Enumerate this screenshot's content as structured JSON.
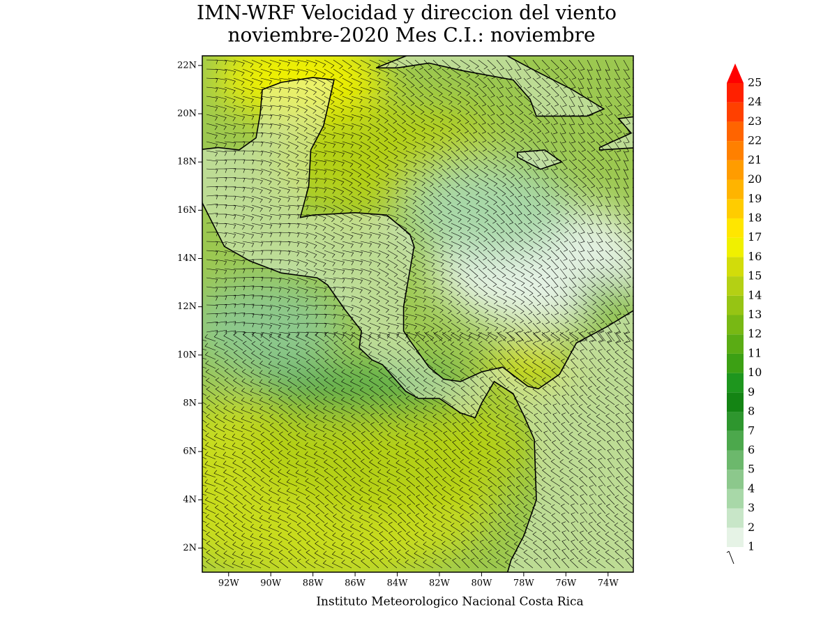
{
  "map": {
    "title": [
      "IMN-WRF Velocidad y direccion del viento",
      "noviembre-2020 Mes C.I.: noviembre"
    ],
    "footer": "Instituto Meteorologico Nacional Costa Rica",
    "xlim": [
      -93.25,
      -72.8
    ],
    "ylim": [
      1,
      22.4
    ],
    "xticks": [
      {
        "value": -92,
        "label": "92W"
      },
      {
        "value": -90,
        "label": "90W"
      },
      {
        "value": -88,
        "label": "88W"
      },
      {
        "value": -86,
        "label": "86W"
      },
      {
        "value": -84,
        "label": "84W"
      },
      {
        "value": -82,
        "label": "82W"
      },
      {
        "value": -80,
        "label": "80W"
      },
      {
        "value": -78,
        "label": "78W"
      },
      {
        "value": -76,
        "label": "76W"
      },
      {
        "value": -74,
        "label": "74W"
      }
    ],
    "yticks": [
      {
        "value": 2,
        "label": "2N"
      },
      {
        "value": 4,
        "label": "4N"
      },
      {
        "value": 6,
        "label": "6N"
      },
      {
        "value": 8,
        "label": "8N"
      },
      {
        "value": 10,
        "label": "10N"
      },
      {
        "value": 12,
        "label": "12N"
      },
      {
        "value": 14,
        "label": "14N"
      },
      {
        "value": 16,
        "label": "16N"
      },
      {
        "value": 18,
        "label": "18N"
      },
      {
        "value": 20,
        "label": "20N"
      },
      {
        "value": 22,
        "label": "22N"
      }
    ],
    "colorbar": {
      "levels": [
        1,
        2,
        3,
        4,
        5,
        6,
        7,
        8,
        9,
        10,
        11,
        12,
        13,
        14,
        15,
        16,
        17,
        18,
        19,
        20,
        21,
        22,
        23,
        24,
        25
      ],
      "colors": [
        "#e6f3e6",
        "#c8e6c8",
        "#a8d8a8",
        "#8cc88c",
        "#6cb86c",
        "#4ca84c",
        "#2e962e",
        "#148414",
        "#1e961e",
        "#3ca014",
        "#5aac14",
        "#78b814",
        "#96c414",
        "#b4d014",
        "#d2dc0a",
        "#f0f000",
        "#ffe600",
        "#ffcc00",
        "#ffb400",
        "#ff9c00",
        "#ff8000",
        "#ff6400",
        "#ff4000",
        "#ff2000"
      ],
      "over_color": "#ff0000"
    }
  }
}
